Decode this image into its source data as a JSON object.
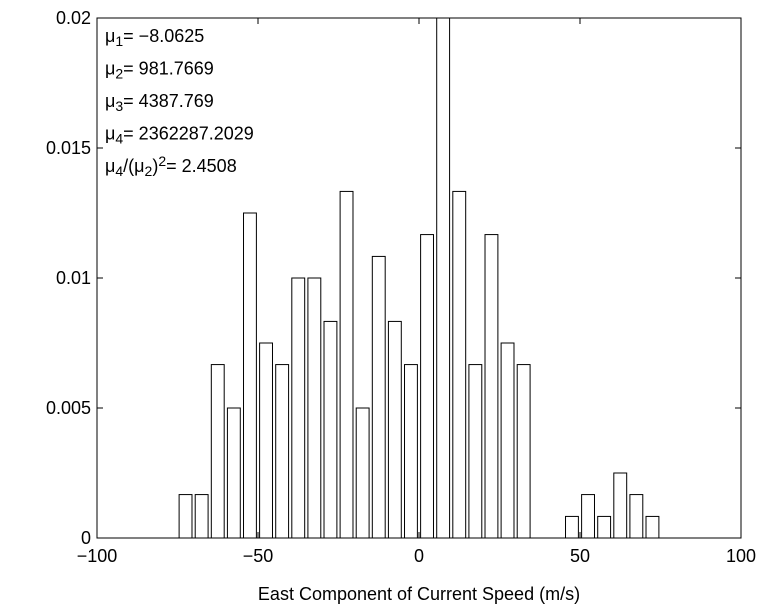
{
  "chart_data": {
    "type": "histogram",
    "xlabel": "East Component of Current Speed (m/s)",
    "bins": [
      -75,
      -70,
      -65,
      -60,
      -55,
      -50,
      -45,
      -40,
      -35,
      -30,
      -25,
      -20,
      -15,
      -10,
      -5,
      0,
      5,
      10,
      15,
      20,
      25,
      30,
      35,
      40,
      45,
      50,
      55,
      60,
      65,
      70,
      75
    ],
    "counts": [
      0.00167,
      0.00167,
      0.00667,
      0.005,
      0.0125,
      0.0075,
      0.00667,
      0.01,
      0.01,
      0.00833,
      0.01333,
      0.005,
      0.01083,
      0.00833,
      0.00667,
      0.01167,
      0.0208,
      0.01333,
      0.00667,
      0.01167,
      0.0075,
      0.00667,
      0,
      0,
      0.00083,
      0.00167,
      0.00083,
      0.0025,
      0.00167,
      0.00083
    ],
    "color": "#ffffff",
    "edgecolor": "#000000",
    "xlim": [
      -100,
      100
    ],
    "xticks": [
      {
        "value": -100,
        "label": "−100"
      },
      {
        "value": -50,
        "label": "−50"
      },
      0,
      50,
      100
    ],
    "ylim": [
      0,
      0.02
    ],
    "yticks": [
      0,
      0.005,
      0.01,
      0.015,
      0.02
    ],
    "grid": false,
    "annotations": [
      [
        {
          "text": "μ"
        },
        {
          "sub": "1"
        },
        {
          "text": "= −8.0625"
        }
      ],
      [
        {
          "text": "μ"
        },
        {
          "sub": "2"
        },
        {
          "text": "= 981.7669"
        }
      ],
      [
        {
          "text": "μ"
        },
        {
          "sub": "3"
        },
        {
          "text": "= 4387.769"
        }
      ],
      [
        {
          "text": "μ"
        },
        {
          "sub": "4"
        },
        {
          "text": "= 2362287.2029"
        }
      ],
      [
        {
          "text": "μ"
        },
        {
          "sub": "4"
        },
        {
          "text": "/(μ"
        },
        {
          "sub": "2"
        },
        {
          "text": ")"
        },
        {
          "sup": "2"
        },
        {
          "text": "= 2.4508"
        }
      ]
    ]
  }
}
